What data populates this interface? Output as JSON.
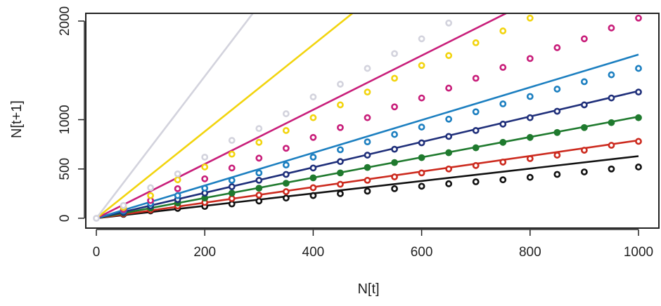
{
  "chart_data": {
    "type": "scatter",
    "title": "",
    "xlabel": "N[t]",
    "ylabel": "N[t+1]",
    "xlim": [
      0,
      1000
    ],
    "ylim": [
      0,
      2000
    ],
    "x_ticks": [
      "0",
      "200",
      "400",
      "600",
      "800",
      "1000"
    ],
    "y_ticks": [
      "0",
      "500",
      "1000",
      "2000"
    ],
    "grid": false,
    "legend": "none",
    "series": [
      {
        "color": "#111111",
        "filled": false,
        "line": [
          [
            0,
            0
          ],
          [
            1000,
            630
          ]
        ],
        "points": [
          [
            50,
            40
          ],
          [
            100,
            75
          ],
          [
            150,
            100
          ],
          [
            200,
            120
          ],
          [
            250,
            145
          ],
          [
            300,
            175
          ],
          [
            350,
            205
          ],
          [
            400,
            230
          ],
          [
            450,
            250
          ],
          [
            500,
            275
          ],
          [
            550,
            300
          ],
          [
            600,
            325
          ],
          [
            650,
            350
          ],
          [
            700,
            370
          ],
          [
            750,
            390
          ],
          [
            800,
            415
          ],
          [
            850,
            445
          ],
          [
            900,
            470
          ],
          [
            950,
            500
          ],
          [
            1000,
            520
          ]
        ]
      },
      {
        "color": "#cc2a1e",
        "filled": false,
        "line": [
          [
            0,
            0
          ],
          [
            1000,
            790
          ]
        ],
        "points": [
          [
            50,
            45
          ],
          [
            100,
            85
          ],
          [
            150,
            125
          ],
          [
            200,
            160
          ],
          [
            250,
            200
          ],
          [
            300,
            235
          ],
          [
            350,
            270
          ],
          [
            400,
            310
          ],
          [
            450,
            345
          ],
          [
            500,
            385
          ],
          [
            550,
            420
          ],
          [
            600,
            460
          ],
          [
            650,
            500
          ],
          [
            700,
            535
          ],
          [
            750,
            570
          ],
          [
            800,
            605
          ],
          [
            850,
            640
          ],
          [
            900,
            690
          ],
          [
            950,
            740
          ],
          [
            1000,
            780
          ]
        ]
      },
      {
        "color": "#1f7a2e",
        "filled": true,
        "line": [
          [
            0,
            0
          ],
          [
            1000,
            1030
          ]
        ],
        "points": [
          [
            50,
            55
          ],
          [
            100,
            105
          ],
          [
            150,
            155
          ],
          [
            200,
            205
          ],
          [
            250,
            255
          ],
          [
            300,
            305
          ],
          [
            350,
            355
          ],
          [
            400,
            410
          ],
          [
            450,
            460
          ],
          [
            500,
            515
          ],
          [
            550,
            565
          ],
          [
            600,
            615
          ],
          [
            650,
            665
          ],
          [
            700,
            715
          ],
          [
            750,
            770
          ],
          [
            800,
            820
          ],
          [
            850,
            870
          ],
          [
            900,
            920
          ],
          [
            950,
            970
          ],
          [
            1000,
            1020
          ]
        ]
      },
      {
        "color": "#1f2f7a",
        "filled": false,
        "line": [
          [
            0,
            0
          ],
          [
            1000,
            1290
          ]
        ],
        "points": [
          [
            50,
            60
          ],
          [
            100,
            125
          ],
          [
            150,
            190
          ],
          [
            200,
            255
          ],
          [
            250,
            320
          ],
          [
            300,
            385
          ],
          [
            350,
            445
          ],
          [
            400,
            510
          ],
          [
            450,
            575
          ],
          [
            500,
            640
          ],
          [
            550,
            700
          ],
          [
            600,
            765
          ],
          [
            650,
            830
          ],
          [
            700,
            890
          ],
          [
            750,
            955
          ],
          [
            800,
            1020
          ],
          [
            850,
            1085
          ],
          [
            900,
            1150
          ],
          [
            950,
            1220
          ],
          [
            1000,
            1280
          ]
        ]
      },
      {
        "color": "#1c7fc0",
        "filled": false,
        "line": [
          [
            0,
            0
          ],
          [
            1000,
            1660
          ]
        ],
        "points": [
          [
            50,
            75
          ],
          [
            100,
            150
          ],
          [
            150,
            230
          ],
          [
            200,
            305
          ],
          [
            250,
            385
          ],
          [
            300,
            460
          ],
          [
            350,
            540
          ],
          [
            400,
            620
          ],
          [
            450,
            695
          ],
          [
            500,
            775
          ],
          [
            550,
            850
          ],
          [
            600,
            925
          ],
          [
            650,
            1005
          ],
          [
            700,
            1080
          ],
          [
            750,
            1160
          ],
          [
            800,
            1235
          ],
          [
            850,
            1310
          ],
          [
            900,
            1385
          ],
          [
            950,
            1455
          ],
          [
            1000,
            1520
          ]
        ]
      },
      {
        "color": "#c81e7a",
        "filled": false,
        "line": [
          [
            0,
            0
          ],
          [
            1000,
            2750
          ]
        ],
        "points": [
          [
            50,
            90
          ],
          [
            100,
            180
          ],
          [
            150,
            300
          ],
          [
            200,
            400
          ],
          [
            250,
            510
          ],
          [
            300,
            610
          ],
          [
            350,
            710
          ],
          [
            400,
            820
          ],
          [
            450,
            920
          ],
          [
            500,
            1020
          ],
          [
            550,
            1130
          ],
          [
            600,
            1220
          ],
          [
            650,
            1320
          ],
          [
            700,
            1420
          ],
          [
            750,
            1530
          ],
          [
            800,
            1620
          ],
          [
            850,
            1730
          ],
          [
            900,
            1820
          ],
          [
            950,
            1930
          ],
          [
            1000,
            2030
          ]
        ]
      },
      {
        "color": "#f2d40e",
        "filled": false,
        "line": [
          [
            0,
            0
          ],
          [
            1000,
            4400
          ]
        ],
        "points": [
          [
            50,
            110
          ],
          [
            100,
            230
          ],
          [
            150,
            390
          ],
          [
            200,
            520
          ],
          [
            250,
            650
          ],
          [
            300,
            770
          ],
          [
            350,
            890
          ],
          [
            400,
            1020
          ],
          [
            450,
            1150
          ],
          [
            500,
            1280
          ],
          [
            550,
            1420
          ],
          [
            600,
            1550
          ],
          [
            650,
            1650
          ],
          [
            700,
            1780
          ],
          [
            750,
            1900
          ],
          [
            800,
            2030
          ]
        ]
      },
      {
        "color": "#d3d3dd",
        "filled": false,
        "line": [
          [
            0,
            0
          ],
          [
            1000,
            7200
          ]
        ],
        "points": [
          [
            0,
            0
          ],
          [
            50,
            130
          ],
          [
            100,
            310
          ],
          [
            150,
            450
          ],
          [
            200,
            620
          ],
          [
            250,
            790
          ],
          [
            300,
            910
          ],
          [
            350,
            1060
          ],
          [
            400,
            1230
          ],
          [
            450,
            1360
          ],
          [
            500,
            1520
          ],
          [
            550,
            1670
          ],
          [
            600,
            1820
          ],
          [
            650,
            1980
          ]
        ]
      }
    ]
  }
}
